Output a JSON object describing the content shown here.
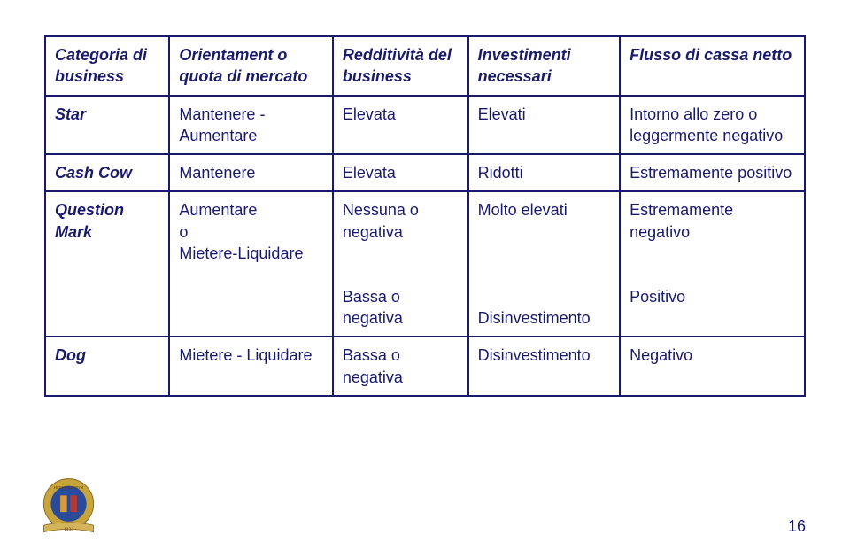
{
  "colors": {
    "text": "#1a1a6a",
    "border": "#1a1a6a",
    "background": "#ffffff"
  },
  "table": {
    "headers": [
      "Categoria di business",
      "Orientament o quota di mercato",
      "Redditività del business",
      "Investimenti necessari",
      "Flusso di cassa netto"
    ],
    "rows": [
      {
        "category": "Star",
        "orientation": "Mantenere - Aumentare",
        "profitability": "Elevata",
        "investments": "Elevati",
        "cashflow": "Intorno allo zero o leggermente negativo"
      },
      {
        "category": "Cash Cow",
        "orientation": "Mantenere",
        "profitability": "Elevata",
        "investments": "Ridotti",
        "cashflow": "Estremamente positivo"
      },
      {
        "category": "Question Mark",
        "orientation": "Aumentare\no\nMietere-Liquidare",
        "profitability": "Nessuna o negativa\n\nBassa o negativa",
        "investments": "Molto elevati\n\n\nDisinvestimento",
        "cashflow": "Estremamente negativo\n\nPositivo"
      },
      {
        "category": "Dog",
        "orientation": "Mietere - Liquidare",
        "profitability": "Bassa o negativa",
        "investments": "Disinvestimento",
        "cashflow": "Negativo"
      }
    ]
  },
  "page_number": "16",
  "seal": {
    "outer_color": "#c8a43f",
    "inner_color": "#2a4a9a",
    "banner_color": "#d4b45a"
  }
}
